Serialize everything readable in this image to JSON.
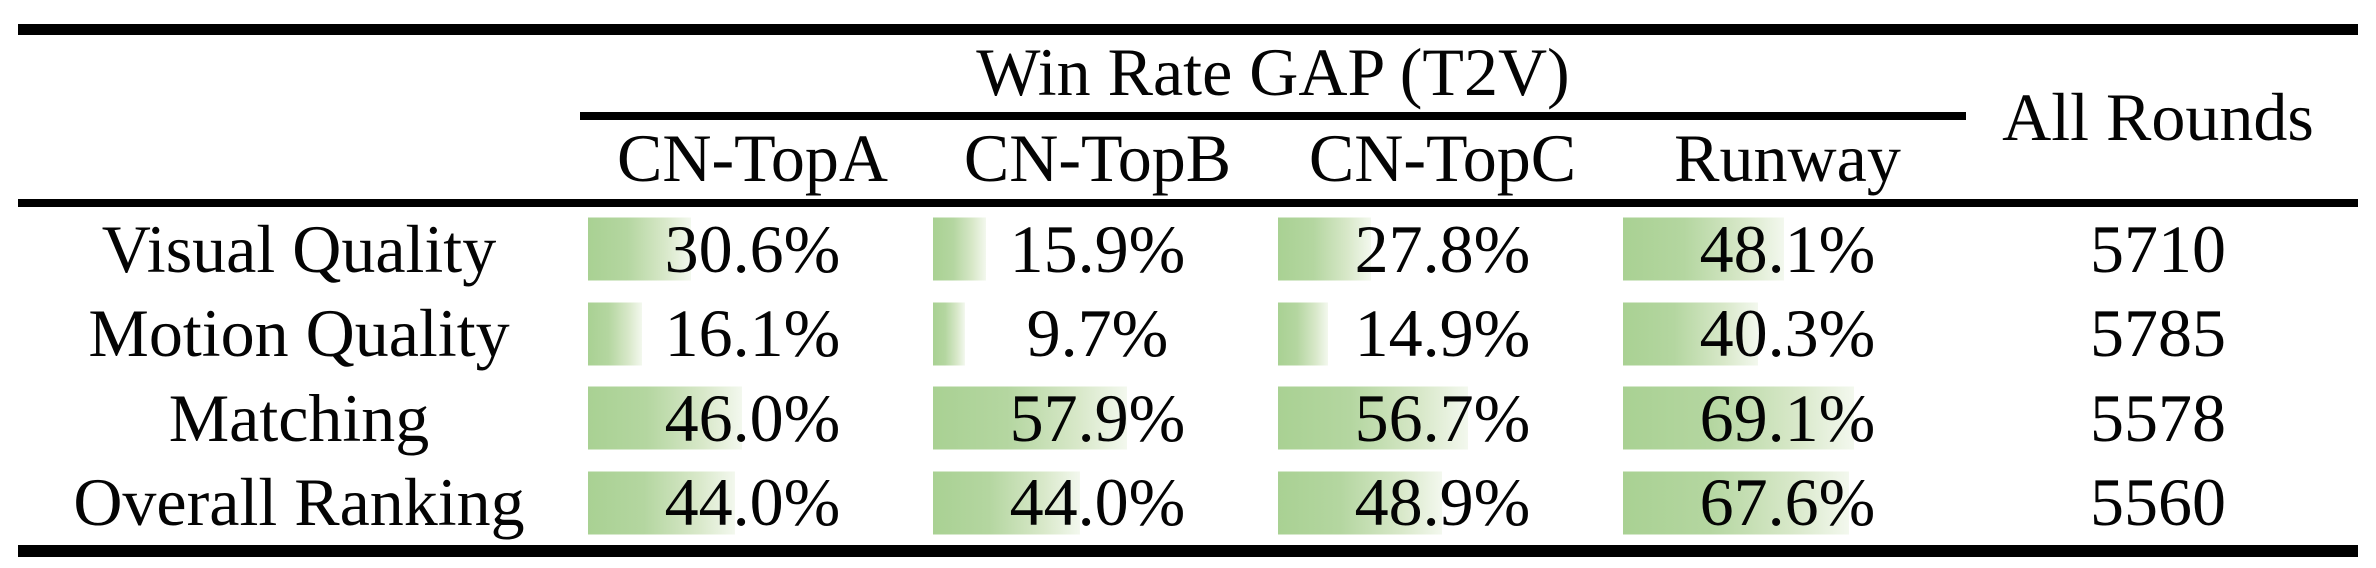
{
  "table": {
    "title": "Win Rate GAP (T2V)",
    "all_rounds_header": "All Rounds",
    "columns": [
      "CN-TopA",
      "CN-TopB",
      "CN-TopC",
      "Runway"
    ],
    "bar_color": "#a9d193",
    "rows": [
      {
        "label": "Visual Quality",
        "values": [
          30.6,
          15.9,
          27.8,
          48.1
        ],
        "display": [
          "30.6%",
          "15.9%",
          "27.8%",
          "48.1%"
        ],
        "all_rounds": "5710"
      },
      {
        "label": "Motion Quality",
        "values": [
          16.1,
          9.7,
          14.9,
          40.3
        ],
        "display": [
          "16.1%",
          "9.7%",
          "14.9%",
          "40.3%"
        ],
        "all_rounds": "5785"
      },
      {
        "label": "Matching",
        "values": [
          46.0,
          57.9,
          56.7,
          69.1
        ],
        "display": [
          "46.0%",
          "57.9%",
          "56.7%",
          "69.1%"
        ],
        "all_rounds": "5578"
      },
      {
        "label": "Overall Ranking",
        "values": [
          44.0,
          44.0,
          48.9,
          67.6
        ],
        "display": [
          "44.0%",
          "44.0%",
          "48.9%",
          "67.6%"
        ],
        "all_rounds": "5560"
      }
    ]
  },
  "chart_data": {
    "type": "table",
    "title": "Win Rate GAP (T2V)",
    "columns": [
      "CN-TopA",
      "CN-TopB",
      "CN-TopC",
      "Runway",
      "All Rounds"
    ],
    "rows": [
      [
        "Visual Quality",
        30.6,
        15.9,
        27.8,
        48.1,
        5710
      ],
      [
        "Motion Quality",
        16.1,
        9.7,
        14.9,
        40.3,
        5785
      ],
      [
        "Matching",
        46.0,
        57.9,
        56.7,
        69.1,
        5578
      ],
      [
        "Overall Ranking",
        44.0,
        44.0,
        48.9,
        67.6,
        5560
      ]
    ]
  }
}
